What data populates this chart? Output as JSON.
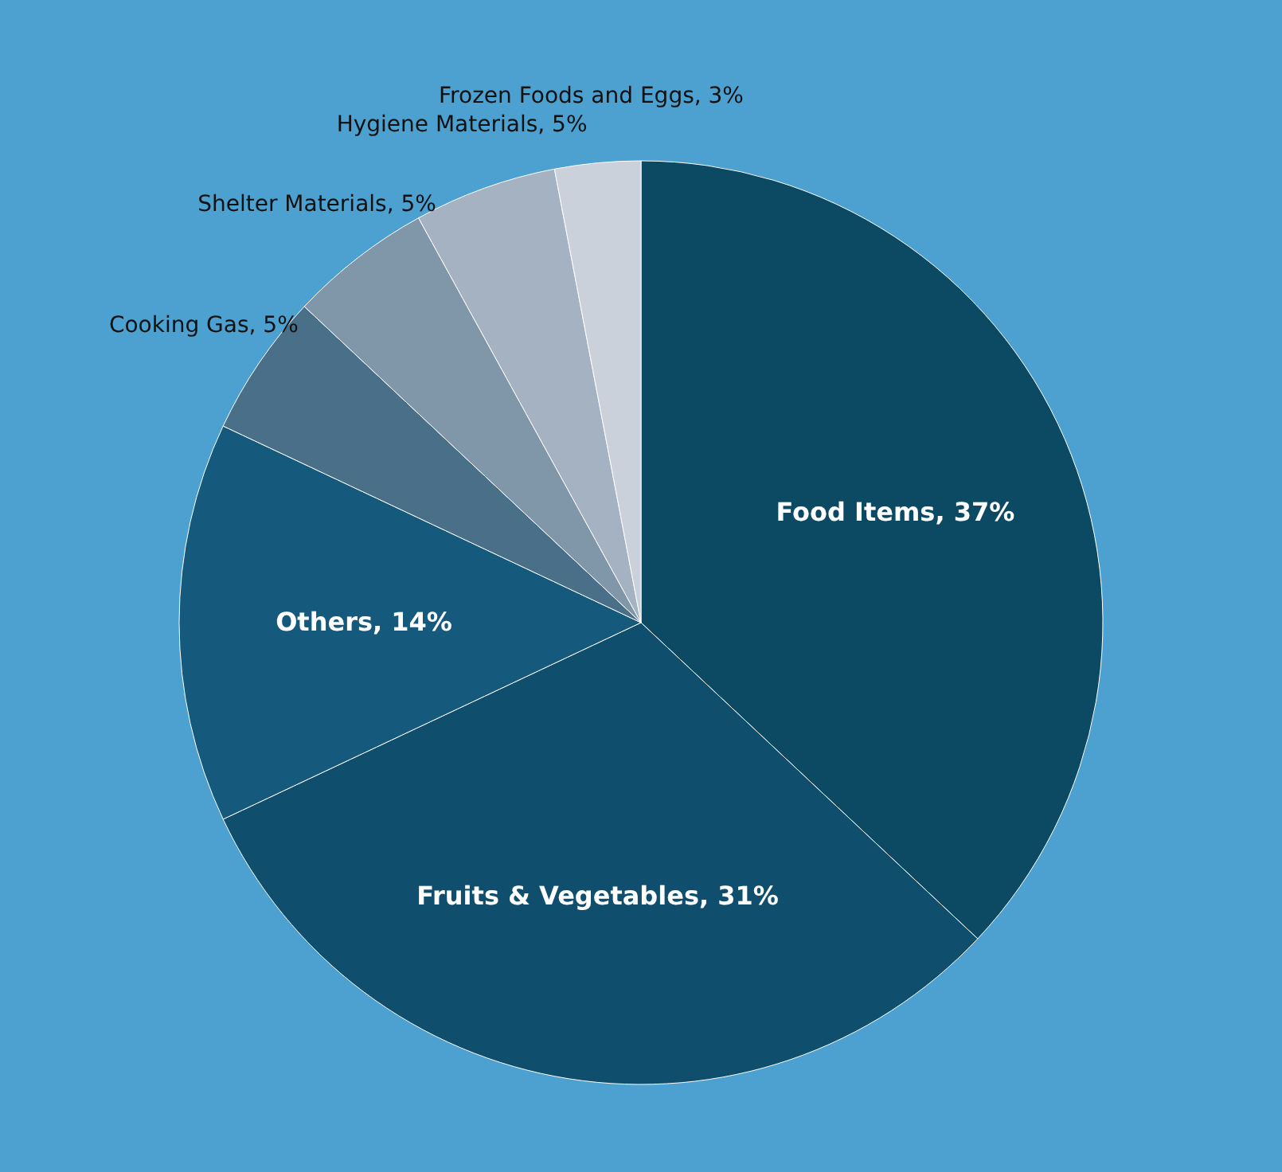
{
  "chart_data": {
    "type": "pie",
    "categories": [
      "Food Items",
      "Fruits & Vegetables",
      "Others",
      "Cooking Gas",
      "Shelter Materials",
      "Hygiene Materials",
      "Frozen Foods and Eggs"
    ],
    "values": [
      37,
      31,
      14,
      5,
      5,
      5,
      3
    ],
    "value_labels": [
      "37%",
      "31%",
      "14%",
      "5%",
      "5%",
      "5%",
      "3%"
    ],
    "colors": [
      "#0b4a62",
      "#0f4e6c",
      "#155a7c",
      "#4a7089",
      "#8097aa",
      "#a5b2c1",
      "#cad1db"
    ]
  }
}
